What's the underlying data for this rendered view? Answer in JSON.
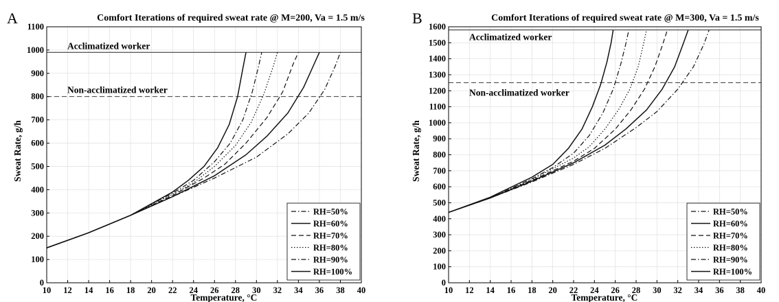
{
  "chart_data": [
    {
      "panel": "A",
      "type": "line",
      "title": "Comfort Iterations of required sweat rate @ M=200, Va = 1.5 m/s",
      "xlabel": "Temperature, °C",
      "ylabel": "Sweat Rate, g/h",
      "xlim": [
        10,
        40
      ],
      "ylim": [
        0,
        1100
      ],
      "xticks": [
        10,
        12,
        14,
        16,
        18,
        20,
        22,
        24,
        26,
        28,
        30,
        32,
        34,
        36,
        38,
        40
      ],
      "yticks": [
        0,
        100,
        200,
        300,
        400,
        500,
        600,
        700,
        800,
        900,
        1000,
        1100
      ],
      "grid": true,
      "legend": "bottom-right",
      "reference_lines": [
        {
          "name": "Acclimatized worker",
          "y": 990,
          "style": "solid"
        },
        {
          "name": "Non-acclimatized worker",
          "y": 800,
          "style": "dashed"
        }
      ],
      "series": [
        {
          "name": "RH=50%",
          "style": "dashdot",
          "x": [
            10,
            14,
            18,
            22,
            26,
            30,
            33,
            35,
            36.5,
            37.5,
            38
          ],
          "y": [
            150,
            215,
            290,
            370,
            450,
            540,
            640,
            730,
            830,
            930,
            990
          ]
        },
        {
          "name": "RH=60%",
          "style": "solid",
          "x": [
            10,
            14,
            18,
            22,
            26,
            29,
            31,
            33,
            34.5,
            35.5,
            36
          ],
          "y": [
            150,
            215,
            290,
            370,
            460,
            550,
            630,
            730,
            840,
            940,
            990
          ]
        },
        {
          "name": "RH=70%",
          "style": "dashed",
          "x": [
            10,
            14,
            18,
            22,
            25,
            27,
            29,
            31,
            32.5,
            33.5,
            34
          ],
          "y": [
            150,
            215,
            290,
            375,
            450,
            510,
            600,
            710,
            820,
            940,
            990
          ]
        },
        {
          "name": "RH=80%",
          "style": "dotted",
          "x": [
            10,
            14,
            18,
            22,
            24,
            26,
            28,
            29.5,
            30.7,
            31.6,
            32
          ],
          "y": [
            150,
            215,
            290,
            380,
            430,
            500,
            590,
            690,
            810,
            930,
            990
          ]
        },
        {
          "name": "RH=90%",
          "style": "dashdot",
          "x": [
            10,
            14,
            18,
            22,
            24,
            26,
            27.5,
            28.7,
            29.6,
            30.2,
            30.5
          ],
          "y": [
            150,
            215,
            290,
            385,
            440,
            520,
            600,
            700,
            820,
            930,
            990
          ]
        },
        {
          "name": "RH=100%",
          "style": "solid",
          "x": [
            10,
            14,
            18,
            22,
            23.5,
            25,
            26.3,
            27.4,
            28.2,
            28.7,
            29
          ],
          "y": [
            150,
            215,
            290,
            390,
            440,
            500,
            580,
            680,
            800,
            920,
            990
          ]
        }
      ],
      "annotations": [
        "Acclimatized worker",
        "Non-acclimatized worker"
      ]
    },
    {
      "panel": "B",
      "type": "line",
      "title": "Comfort Iterations of required sweat rate @ M=300, Va = 1.5 m/s",
      "xlabel": "Temperature, °C",
      "ylabel": "Sweat Rate, g/h",
      "xlim": [
        10,
        40
      ],
      "ylim": [
        0,
        1600
      ],
      "xticks": [
        10,
        12,
        14,
        16,
        18,
        20,
        22,
        24,
        26,
        28,
        30,
        32,
        34,
        36,
        38,
        40
      ],
      "yticks": [
        0,
        100,
        200,
        300,
        400,
        500,
        600,
        700,
        800,
        900,
        1000,
        1100,
        1200,
        1300,
        1400,
        1500,
        1600
      ],
      "grid": true,
      "legend": "bottom-right",
      "reference_lines": [
        {
          "name": "Acclimatized worker",
          "y": 1580,
          "style": "solid"
        },
        {
          "name": "Non-acclimatized worker",
          "y": 1250,
          "style": "dashed"
        }
      ],
      "series": [
        {
          "name": "RH=50%",
          "style": "dashdot",
          "x": [
            10,
            14,
            18,
            22,
            25,
            28,
            30,
            32,
            33.5,
            34.5,
            35
          ],
          "y": [
            440,
            530,
            630,
            740,
            840,
            970,
            1070,
            1210,
            1350,
            1490,
            1580
          ]
        },
        {
          "name": "RH=60%",
          "style": "solid",
          "x": [
            10,
            14,
            18,
            22,
            25,
            27,
            29,
            30.5,
            31.7,
            32.5,
            33
          ],
          "y": [
            440,
            530,
            635,
            750,
            860,
            960,
            1080,
            1210,
            1350,
            1490,
            1580
          ]
        },
        {
          "name": "RH=70%",
          "style": "dashed",
          "x": [
            10,
            14,
            18,
            22,
            24,
            26,
            27.5,
            28.8,
            29.8,
            30.5,
            31
          ],
          "y": [
            440,
            530,
            640,
            760,
            840,
            960,
            1080,
            1210,
            1350,
            1480,
            1580
          ]
        },
        {
          "name": "RH=80%",
          "style": "dotted",
          "x": [
            10,
            14,
            18,
            22,
            23.5,
            25,
            26.3,
            27.4,
            28.2,
            28.7,
            29
          ],
          "y": [
            440,
            530,
            645,
            780,
            850,
            960,
            1080,
            1210,
            1350,
            1490,
            1580
          ]
        },
        {
          "name": "RH=90%",
          "style": "dashdot",
          "x": [
            10,
            14,
            18,
            20,
            22,
            23.5,
            24.8,
            25.8,
            26.5,
            27,
            27.3
          ],
          "y": [
            440,
            530,
            650,
            720,
            810,
            920,
            1060,
            1210,
            1360,
            1490,
            1580
          ]
        },
        {
          "name": "RH=100%",
          "style": "solid",
          "x": [
            10,
            14,
            18,
            20,
            21.5,
            22.8,
            23.8,
            24.6,
            25.2,
            25.6,
            25.8
          ],
          "y": [
            440,
            535,
            660,
            740,
            840,
            960,
            1100,
            1240,
            1380,
            1500,
            1580
          ]
        }
      ],
      "annotations": [
        "Acclimatized worker",
        "Non-acclimatized worker"
      ]
    }
  ],
  "legend_entries": [
    "RH=50%",
    "RH=60%",
    "RH=70%",
    "RH=80%",
    "RH=90%",
    "RH=100%"
  ]
}
